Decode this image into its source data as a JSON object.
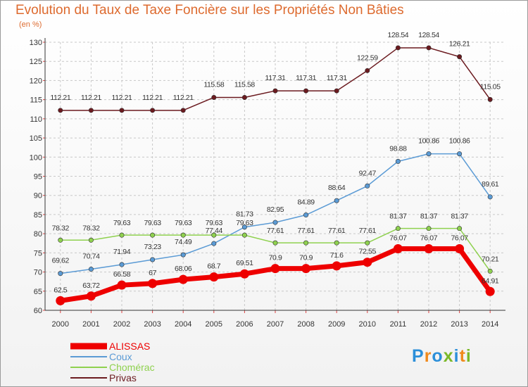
{
  "title": "Evolution du Taux de Taxe Foncière sur les Propriétés Non Bâties",
  "subtitle": "(en %)",
  "logo": {
    "text": "Proxiti",
    "colors": [
      "#2b8fd9",
      "#f08a1c",
      "#2b8fd9",
      "#7ab828",
      "#2b8fd9",
      "#f08a1c",
      "#7ab828"
    ]
  },
  "chart_data": {
    "type": "line",
    "x": [
      2000,
      2001,
      2002,
      2003,
      2004,
      2005,
      2006,
      2007,
      2008,
      2009,
      2010,
      2011,
      2012,
      2013,
      2014
    ],
    "ylim": [
      60,
      130
    ],
    "yticks": [
      60,
      65,
      70,
      75,
      80,
      85,
      90,
      95,
      100,
      105,
      110,
      115,
      120,
      125,
      130
    ],
    "grid": "dashed",
    "legend_position": "bottom-left",
    "series": [
      {
        "name": "Privas",
        "color": "#6b1a1f",
        "width": 1.5,
        "values": [
          112.21,
          112.21,
          112.21,
          112.21,
          112.21,
          115.58,
          115.58,
          117.31,
          117.31,
          117.31,
          122.59,
          128.54,
          128.54,
          126.21,
          115.05
        ],
        "labels": [
          "112.21",
          "112.21",
          "112.21",
          "112.21",
          "112.21",
          "115.58",
          "115.58",
          "117.31",
          "117.31",
          "117.31",
          "122.59",
          "128.54",
          "128.54",
          "126.21",
          "115.05"
        ]
      },
      {
        "name": "Coux",
        "color": "#5b9bd5",
        "width": 1.5,
        "values": [
          69.62,
          70.74,
          71.94,
          73.23,
          74.49,
          77.44,
          81.73,
          82.95,
          84.89,
          88.64,
          92.47,
          98.88,
          100.86,
          100.86,
          89.61
        ],
        "labels": [
          "69.62",
          "70.74",
          "71.94",
          "73.23",
          "74.49",
          "77.44",
          "81.73",
          "82.95",
          "84.89",
          "88.64",
          "92.47",
          "98.88",
          "100.86",
          "100.86",
          "89.61"
        ]
      },
      {
        "name": "Chomérac",
        "color": "#8fd14f",
        "width": 1.5,
        "values": [
          78.32,
          78.32,
          79.63,
          79.63,
          79.63,
          79.63,
          79.63,
          77.61,
          77.61,
          77.61,
          77.61,
          81.37,
          81.37,
          81.37,
          70.21
        ],
        "labels": [
          "78.32",
          "78.32",
          "79.63",
          "79.63",
          "79.63",
          "79.63",
          "79.63",
          "77.61",
          "77.61",
          "77.61",
          "77.61",
          "81.37",
          "81.37",
          "81.37",
          "70.21"
        ]
      },
      {
        "name": "ALISSAS",
        "color": "#ee0000",
        "width": 7,
        "values": [
          62.5,
          63.72,
          66.58,
          67,
          68.06,
          68.7,
          69.51,
          70.9,
          70.9,
          71.6,
          72.55,
          76.07,
          76.07,
          76.07,
          64.91
        ],
        "labels": [
          "62.5",
          "63.72",
          "66.58",
          "67",
          "68.06",
          "68.7",
          "69.51",
          "70.9",
          "70.9",
          "71.6",
          "72.55",
          "76.07",
          "76.07",
          "76.07",
          "64.91"
        ]
      }
    ],
    "legend": [
      {
        "name": "ALISSAS",
        "color": "#ee0000"
      },
      {
        "name": "Coux",
        "color": "#5b9bd5"
      },
      {
        "name": "Chomérac",
        "color": "#8fd14f"
      },
      {
        "name": "Privas",
        "color": "#6b1a1f"
      }
    ]
  }
}
